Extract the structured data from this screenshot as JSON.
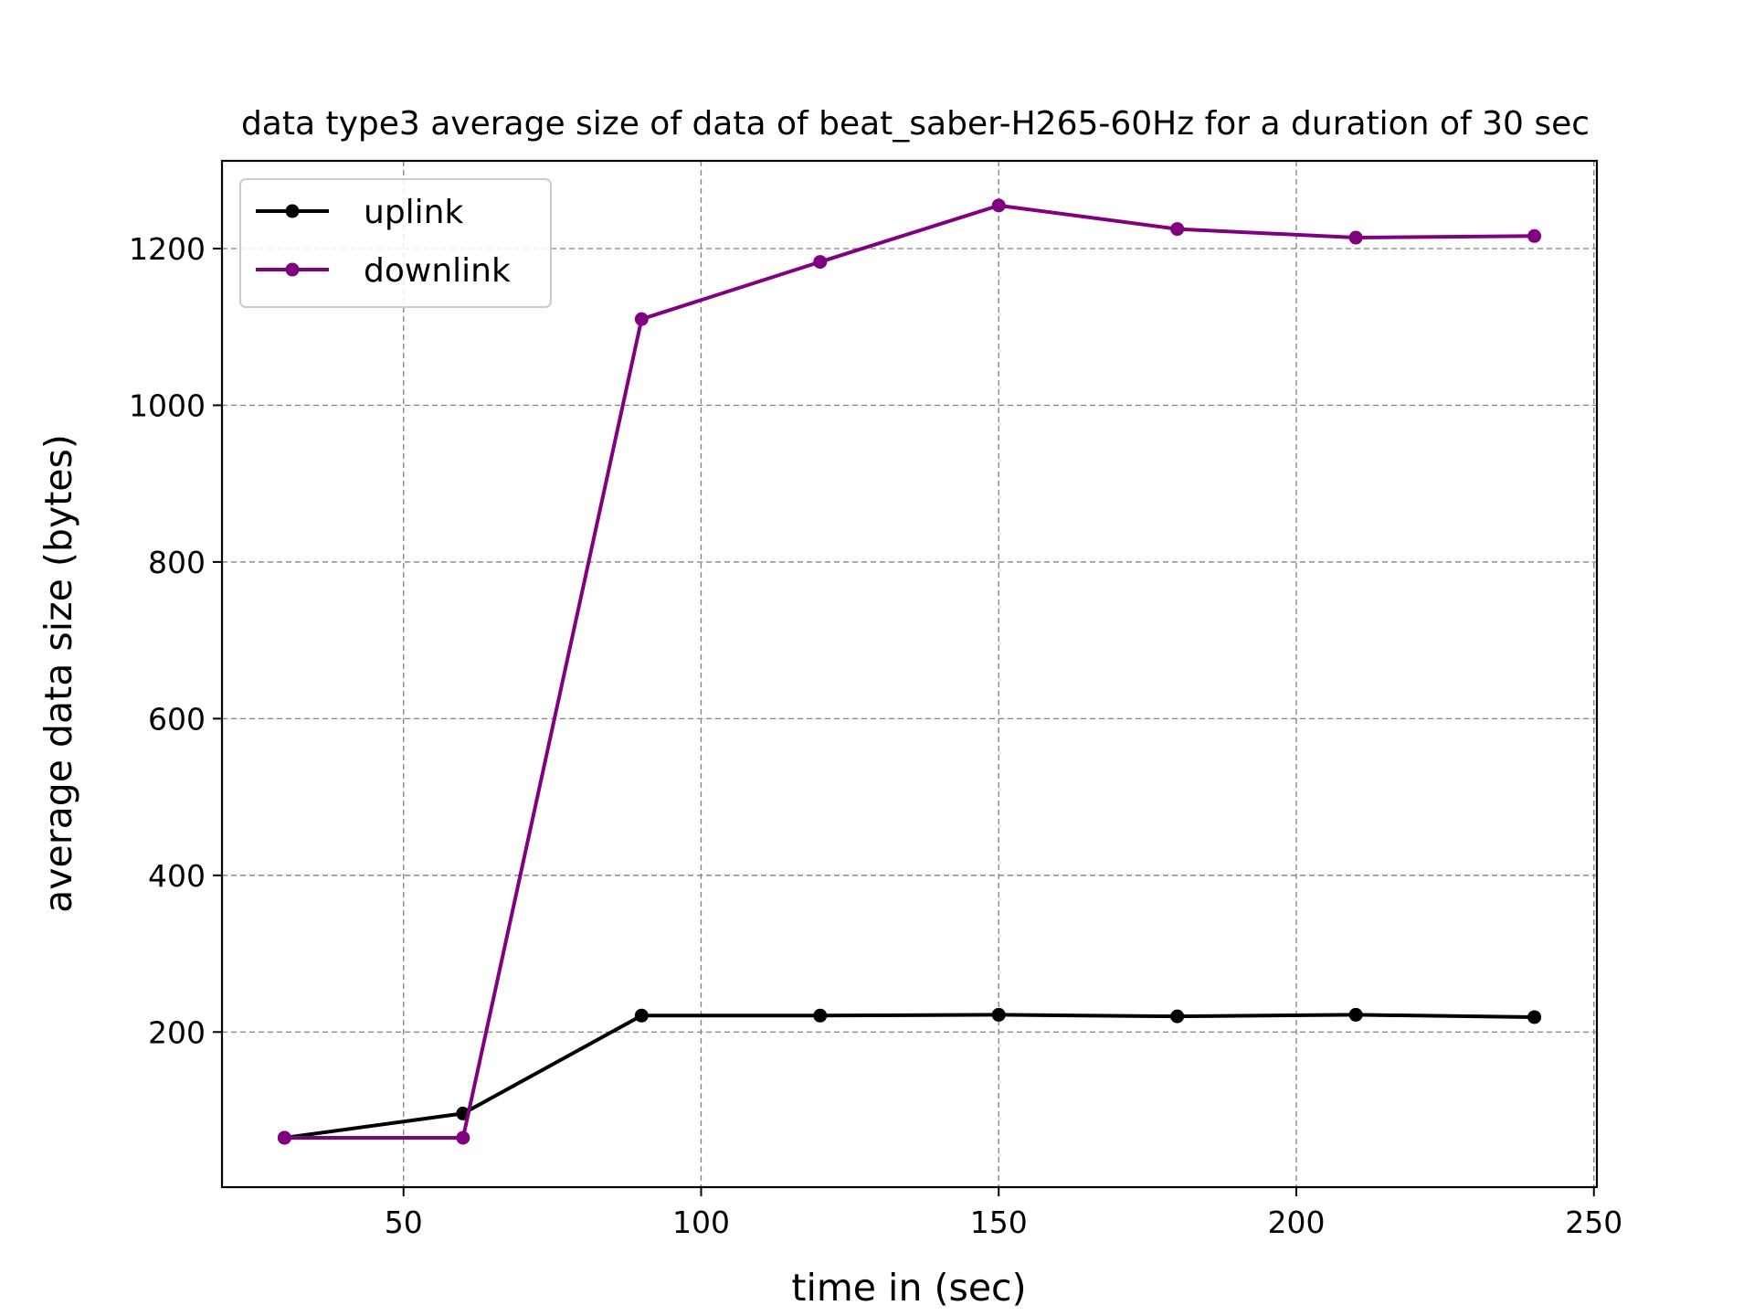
{
  "chart_data": {
    "type": "line",
    "title": "data type3 average size of data of beat_saber-H265-60Hz for a duration of 30 sec",
    "xlabel": "time in (sec)",
    "ylabel": "average data size (bytes)",
    "xlim": [
      19.5,
      250.5
    ],
    "ylim": [
      2,
      1312
    ],
    "xticks": [
      50,
      100,
      150,
      200,
      250
    ],
    "yticks": [
      200,
      400,
      600,
      800,
      1000,
      1200
    ],
    "grid": true,
    "legend_position": "top-left",
    "x": [
      30,
      60,
      90,
      120,
      150,
      180,
      210,
      240
    ],
    "series": [
      {
        "name": "uplink",
        "color": "#000000",
        "values": [
          65,
          96,
          221,
          221,
          222,
          220,
          222,
          219
        ]
      },
      {
        "name": "downlink",
        "color": "#800080",
        "values": [
          65,
          65,
          1110,
          1183,
          1255,
          1225,
          1214,
          1216
        ]
      }
    ]
  }
}
